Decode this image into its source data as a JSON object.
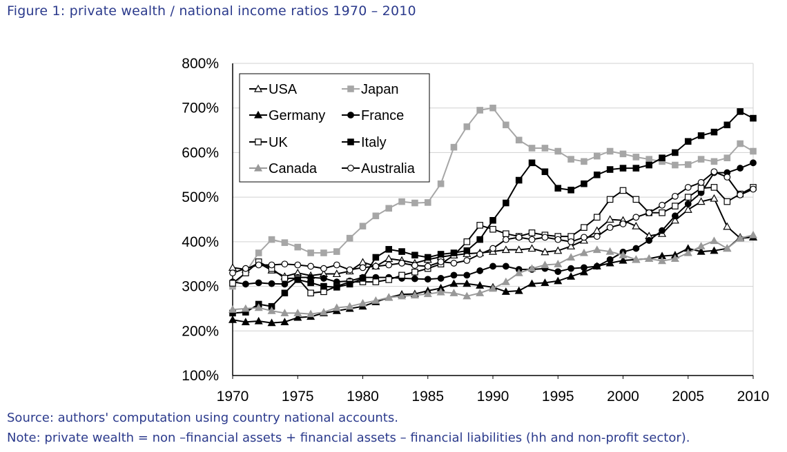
{
  "header": {
    "title": "Figure 1: private wealth / national income ratios 1970 – 2010"
  },
  "footer": {
    "source": "Source: authors' computation using country national accounts.",
    "note": "Note: private wealth = non –financial assets + financial assets – financial liabilities (hh and non-profit sector)."
  },
  "chart_data": {
    "type": "line",
    "title": "",
    "xlabel": "",
    "ylabel": "",
    "xlim": [
      1970,
      2010
    ],
    "ylim": [
      100,
      800
    ],
    "x_ticks": [
      1970,
      1975,
      1980,
      1985,
      1990,
      1995,
      2000,
      2005,
      2010
    ],
    "x_tick_labels": [
      "1970",
      "1975",
      "1980",
      "1985",
      "1990",
      "1995",
      "2000",
      "2005",
      "2010"
    ],
    "y_ticks": [
      100,
      200,
      300,
      400,
      500,
      600,
      700,
      800
    ],
    "y_tick_labels": [
      "100%",
      "200%",
      "300%",
      "400%",
      "500%",
      "600%",
      "700%",
      "800%"
    ],
    "grid": "horizontal",
    "legend_position": "top-left",
    "x": [
      1970,
      1971,
      1972,
      1973,
      1974,
      1975,
      1976,
      1977,
      1978,
      1979,
      1980,
      1981,
      1982,
      1983,
      1984,
      1985,
      1986,
      1987,
      1988,
      1989,
      1990,
      1991,
      1992,
      1993,
      1994,
      1995,
      1996,
      1997,
      1998,
      1999,
      2000,
      2001,
      2002,
      2003,
      2004,
      2005,
      2006,
      2007,
      2008,
      2009,
      2010
    ],
    "series": [
      {
        "name": "USA",
        "color": "#000000",
        "marker": "triangle-open",
        "values": [
          342,
          338,
          352,
          336,
          322,
          330,
          324,
          328,
          328,
          334,
          354,
          345,
          362,
          358,
          352,
          360,
          366,
          370,
          373,
          375,
          378,
          382,
          382,
          385,
          377,
          380,
          390,
          403,
          425,
          450,
          448,
          435,
          413,
          418,
          448,
          472,
          490,
          497,
          434,
          408,
          410
        ]
      },
      {
        "name": "Japan",
        "color": "#a6a6a6",
        "marker": "square",
        "values": [
          300,
          332,
          375,
          405,
          398,
          388,
          375,
          375,
          378,
          408,
          435,
          458,
          475,
          490,
          487,
          488,
          530,
          612,
          658,
          695,
          700,
          662,
          628,
          610,
          610,
          603,
          585,
          580,
          592,
          603,
          597,
          590,
          585,
          580,
          572,
          573,
          585,
          580,
          588,
          620,
          603
        ]
      },
      {
        "name": "Germany",
        "color": "#000000",
        "marker": "triangle",
        "values": [
          225,
          220,
          222,
          218,
          220,
          230,
          232,
          240,
          245,
          250,
          255,
          265,
          275,
          282,
          283,
          290,
          296,
          306,
          306,
          302,
          298,
          288,
          290,
          306,
          308,
          312,
          322,
          332,
          345,
          352,
          358,
          360,
          362,
          368,
          370,
          385,
          378,
          380,
          385,
          410,
          410
        ]
      },
      {
        "name": "France",
        "color": "#000000",
        "marker": "circle",
        "values": [
          310,
          305,
          308,
          306,
          305,
          320,
          320,
          318,
          310,
          312,
          320,
          320,
          320,
          318,
          317,
          316,
          318,
          325,
          325,
          335,
          345,
          345,
          338,
          338,
          340,
          333,
          340,
          342,
          345,
          360,
          377,
          385,
          403,
          425,
          458,
          485,
          510,
          555,
          555,
          565,
          577
        ]
      },
      {
        "name": "UK",
        "color": "#000000",
        "marker": "square-open",
        "values": [
          307,
          330,
          355,
          340,
          318,
          318,
          285,
          288,
          300,
          310,
          310,
          310,
          315,
          325,
          332,
          340,
          350,
          370,
          400,
          437,
          428,
          418,
          412,
          420,
          415,
          412,
          412,
          432,
          455,
          495,
          515,
          495,
          465,
          465,
          480,
          500,
          520,
          522,
          490,
          507,
          522
        ]
      },
      {
        "name": "Italy",
        "color": "#000000",
        "marker": "square",
        "values": [
          240,
          242,
          260,
          255,
          285,
          315,
          308,
          300,
          298,
          305,
          318,
          365,
          383,
          378,
          370,
          365,
          372,
          375,
          380,
          405,
          448,
          487,
          538,
          577,
          557,
          520,
          516,
          530,
          550,
          562,
          565,
          565,
          572,
          588,
          600,
          625,
          638,
          646,
          662,
          692,
          677
        ]
      },
      {
        "name": "Canada",
        "color": "#999999",
        "marker": "triangle",
        "values": [
          248,
          250,
          252,
          245,
          240,
          240,
          238,
          242,
          252,
          255,
          262,
          268,
          275,
          278,
          280,
          283,
          287,
          285,
          278,
          285,
          295,
          310,
          330,
          340,
          348,
          350,
          365,
          375,
          382,
          378,
          370,
          360,
          362,
          357,
          362,
          375,
          390,
          402,
          385,
          408,
          415
        ]
      },
      {
        "name": "Australia",
        "color": "#000000",
        "marker": "circle-open",
        "values": [
          330,
          340,
          348,
          348,
          350,
          348,
          345,
          340,
          348,
          337,
          342,
          345,
          348,
          352,
          347,
          345,
          355,
          352,
          358,
          372,
          385,
          405,
          410,
          405,
          410,
          405,
          400,
          410,
          412,
          432,
          440,
          455,
          465,
          482,
          502,
          522,
          533,
          557,
          545,
          505,
          518
        ]
      }
    ]
  }
}
